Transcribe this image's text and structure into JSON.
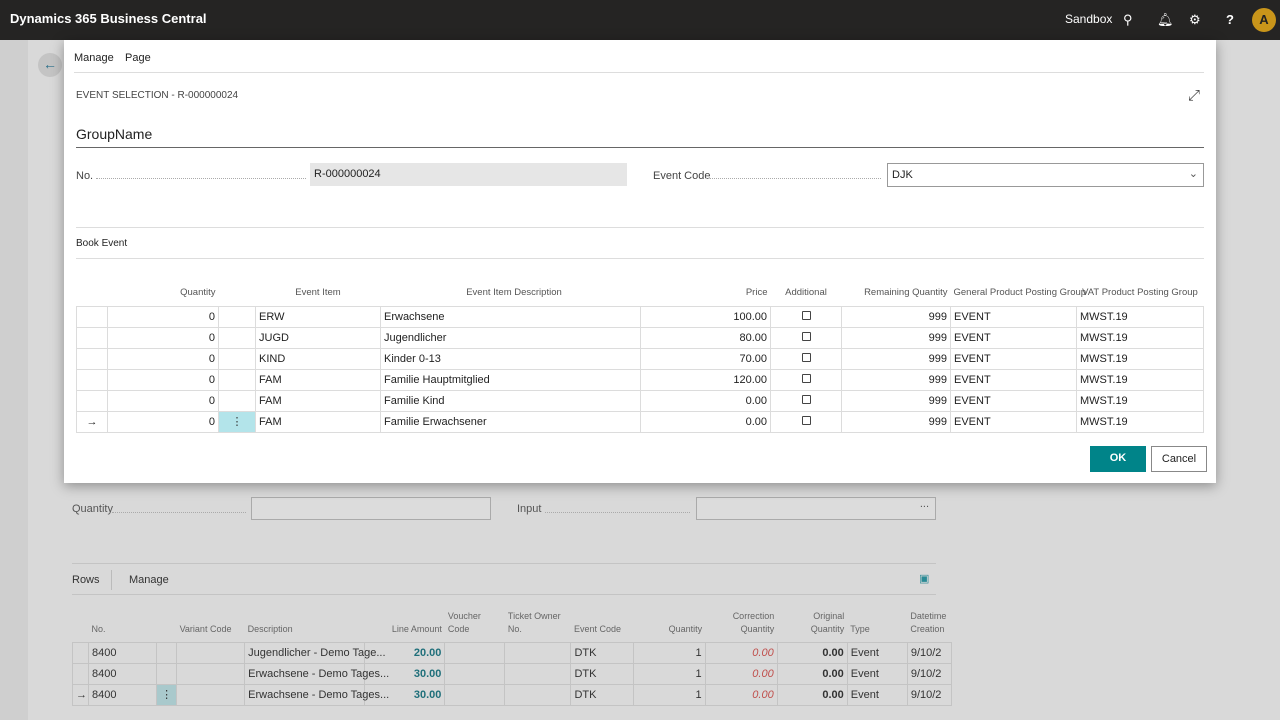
{
  "app": {
    "title": "Dynamics 365 Business Central",
    "environment": "Sandbox",
    "avatar_initial": "A"
  },
  "dialog": {
    "menu": [
      "Manage",
      "Page"
    ],
    "caption": "EVENT SELECTION - R-000000024",
    "group_title": "GroupName",
    "no_label": "No.",
    "no_value": "R-000000024",
    "event_code_label": "Event Code",
    "event_code_value": "DJK",
    "section_title": "Book Event",
    "columns": [
      "Quantity",
      "Event Item",
      "Event Item Description",
      "Price",
      "Additional",
      "Remaining Quantity",
      "General Product Posting Group",
      "VAT Product Posting Group"
    ],
    "rows": [
      {
        "qty": "0",
        "item": "ERW",
        "desc": "Erwachsene",
        "price": "100.00",
        "additional": false,
        "remaining": "999",
        "gen": "EVENT",
        "vat": "MWST.19"
      },
      {
        "qty": "0",
        "item": "JUGD",
        "desc": "Jugendlicher",
        "price": "80.00",
        "additional": false,
        "remaining": "999",
        "gen": "EVENT",
        "vat": "MWST.19"
      },
      {
        "qty": "0",
        "item": "KIND",
        "desc": "Kinder 0-13",
        "price": "70.00",
        "additional": false,
        "remaining": "999",
        "gen": "EVENT",
        "vat": "MWST.19"
      },
      {
        "qty": "0",
        "item": "FAM",
        "desc": "Familie Hauptmitglied",
        "price": "120.00",
        "additional": false,
        "remaining": "999",
        "gen": "EVENT",
        "vat": "MWST.19"
      },
      {
        "qty": "0",
        "item": "FAM",
        "desc": "Familie Kind",
        "price": "0.00",
        "additional": false,
        "remaining": "999",
        "gen": "EVENT",
        "vat": "MWST.19"
      },
      {
        "qty": "0",
        "item": "FAM",
        "desc": "Familie Erwachsener",
        "price": "0.00",
        "additional": false,
        "remaining": "999",
        "gen": "EVENT",
        "vat": "MWST.19",
        "selected": true
      }
    ],
    "ok_label": "OK",
    "cancel_label": "Cancel"
  },
  "background": {
    "quantity_label": "Quantity",
    "input_label": "Input",
    "input_value": "...",
    "tabs": [
      "Rows",
      "Manage"
    ],
    "columns": [
      "No.",
      "Variant Code",
      "Description",
      "Line Amount",
      "Voucher Code",
      "Ticket Owner No.",
      "Event Code",
      "Quantity",
      "Correction Quantity",
      "Original Quantity",
      "Type",
      "Datetime Creation"
    ],
    "rows": [
      {
        "no": "8400",
        "variant": "",
        "desc": "Jugendlicher - Demo Tage...",
        "amount": "20.00",
        "voucher": "",
        "owner": "",
        "event": "DTK",
        "qty": "1",
        "corr": "0.00",
        "orig": "0.00",
        "type": "Event",
        "dt": "9/10/2"
      },
      {
        "no": "8400",
        "variant": "",
        "desc": "Erwachsene - Demo Tages...",
        "amount": "30.00",
        "voucher": "",
        "owner": "",
        "event": "DTK",
        "qty": "1",
        "corr": "0.00",
        "orig": "0.00",
        "type": "Event",
        "dt": "9/10/2"
      },
      {
        "no": "8400",
        "variant": "",
        "desc": "Erwachsene - Demo Tages...",
        "amount": "30.00",
        "voucher": "",
        "owner": "",
        "event": "DTK",
        "qty": "1",
        "corr": "0.00",
        "orig": "0.00",
        "type": "Event",
        "dt": "9/10/2",
        "selected": true
      }
    ]
  },
  "colors": {
    "accent": "#008489",
    "amount": "#1f6f7a",
    "negative": "#c0504d"
  }
}
